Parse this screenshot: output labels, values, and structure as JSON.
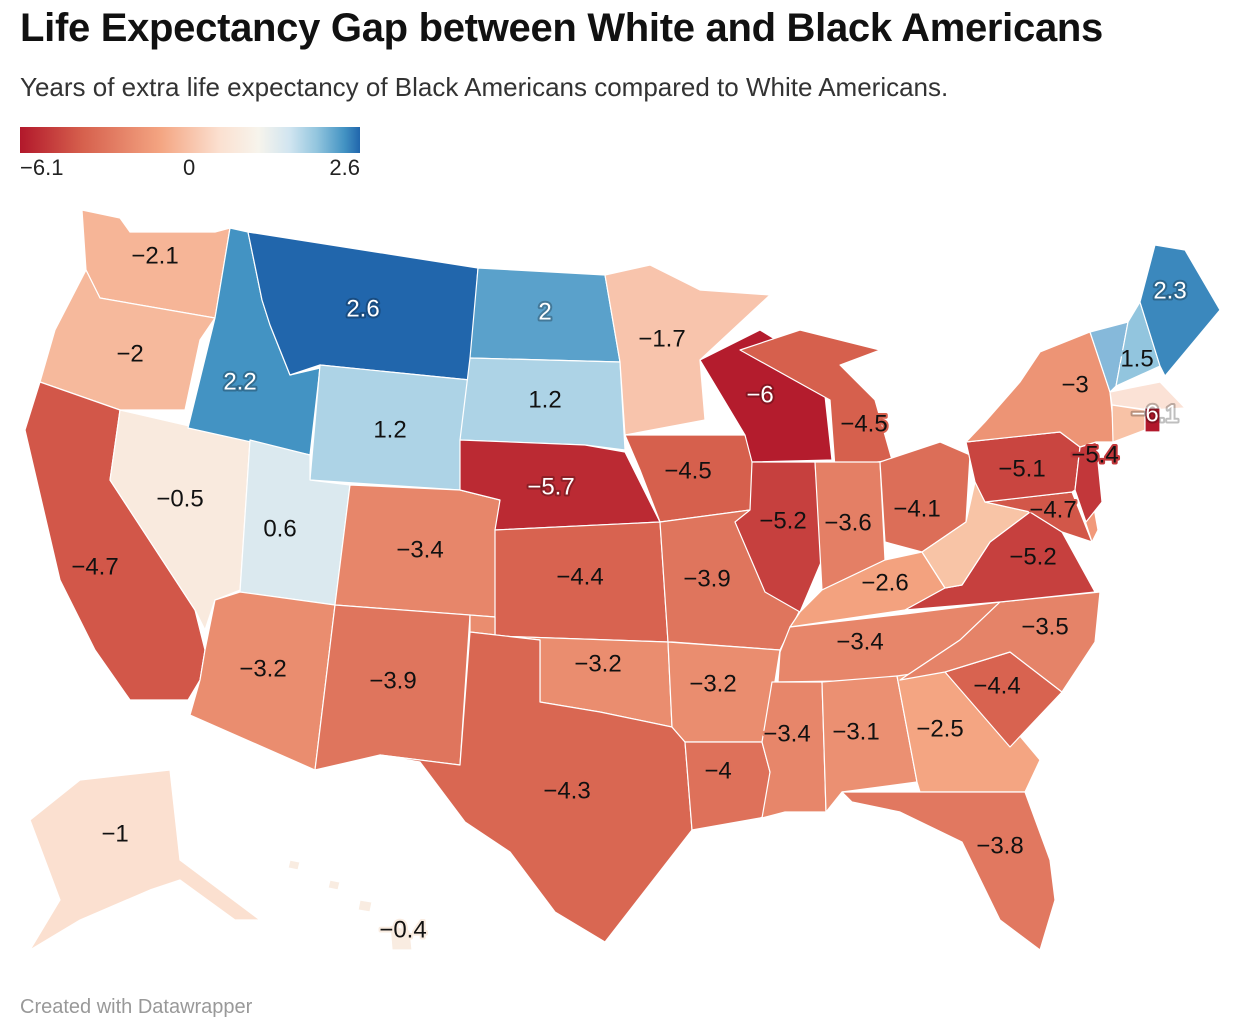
{
  "header": {
    "title": "Life Expectancy Gap between White and Black Americans",
    "subtitle": "Years of extra life expectancy of Black Americans compared to White Americans."
  },
  "legend": {
    "min_label": "−6.1",
    "mid_label": "0",
    "max_label": "2.6",
    "min": -6.1,
    "max": 2.6,
    "colors": {
      "min": "#b2182b",
      "mid": "#f7f4ec",
      "max": "#2166ac"
    }
  },
  "states": [
    {
      "id": "WA",
      "value": -2.1,
      "label": "−2.1"
    },
    {
      "id": "OR",
      "value": -2,
      "label": "−2"
    },
    {
      "id": "CA",
      "value": -4.7,
      "label": "−4.7"
    },
    {
      "id": "NV",
      "value": -0.5,
      "label": "−0.5"
    },
    {
      "id": "ID",
      "value": 2.2,
      "label": "2.2"
    },
    {
      "id": "MT",
      "value": 2.6,
      "label": "2.6"
    },
    {
      "id": "WY",
      "value": 1.2,
      "label": "1.2"
    },
    {
      "id": "UT",
      "value": 0.6,
      "label": "0.6"
    },
    {
      "id": "AZ",
      "value": -3.2,
      "label": "−3.2"
    },
    {
      "id": "CO",
      "value": -3.4,
      "label": "−3.4"
    },
    {
      "id": "NM",
      "value": -3.9,
      "label": "−3.9"
    },
    {
      "id": "ND",
      "value": 2,
      "label": "2"
    },
    {
      "id": "SD",
      "value": 1.2,
      "label": "1.2"
    },
    {
      "id": "NE",
      "value": -5.7,
      "label": "−5.7"
    },
    {
      "id": "KS",
      "value": -4.4,
      "label": "−4.4"
    },
    {
      "id": "OK",
      "value": -3.2,
      "label": "−3.2"
    },
    {
      "id": "TX",
      "value": -4.3,
      "label": "−4.3"
    },
    {
      "id": "MN",
      "value": -1.7,
      "label": "−1.7"
    },
    {
      "id": "IA",
      "value": -4.5,
      "label": "−4.5"
    },
    {
      "id": "MO",
      "value": -3.9,
      "label": "−3.9"
    },
    {
      "id": "AR",
      "value": -3.2,
      "label": "−3.2"
    },
    {
      "id": "LA",
      "value": -4,
      "label": "−4"
    },
    {
      "id": "WI",
      "value": -6,
      "label": "−6"
    },
    {
      "id": "IL",
      "value": -5.2,
      "label": "−5.2"
    },
    {
      "id": "MI",
      "value": -4.5,
      "label": "−4.5"
    },
    {
      "id": "IN",
      "value": -3.6,
      "label": "−3.6"
    },
    {
      "id": "OH",
      "value": -4.1,
      "label": "−4.1"
    },
    {
      "id": "KY",
      "value": -2.6,
      "label": "−2.6"
    },
    {
      "id": "TN",
      "value": -3.4,
      "label": "−3.4"
    },
    {
      "id": "MS",
      "value": -3.4,
      "label": "−3.4"
    },
    {
      "id": "AL",
      "value": -3.1,
      "label": "−3.1"
    },
    {
      "id": "GA",
      "value": -2.5,
      "label": "−2.5"
    },
    {
      "id": "FL",
      "value": -3.8,
      "label": "−3.8"
    },
    {
      "id": "SC",
      "value": -4.4,
      "label": "−4.4"
    },
    {
      "id": "NC",
      "value": -3.5,
      "label": "−3.5"
    },
    {
      "id": "VA",
      "value": -5.2,
      "label": "−5.2"
    },
    {
      "id": "WV",
      "fill": "#f8c4a6"
    },
    {
      "id": "MD",
      "value": -4.7,
      "label": "−4.7"
    },
    {
      "id": "DE",
      "fill": "#f1997a"
    },
    {
      "id": "PA",
      "value": -5.1,
      "label": "−5.1"
    },
    {
      "id": "NJ",
      "value": -5.4,
      "label": "−5.4"
    },
    {
      "id": "NY",
      "value": -3,
      "label": "−3"
    },
    {
      "id": "VT",
      "fill": "#86b9da"
    },
    {
      "id": "NH",
      "value": 1.5,
      "label": "1.5"
    },
    {
      "id": "ME",
      "value": 2.3,
      "label": "2.3"
    },
    {
      "id": "MA",
      "fill": "#fbe2d6"
    },
    {
      "id": "CT",
      "fill": "#f8c2a6"
    },
    {
      "id": "RI",
      "value": -6.1,
      "label": "−6.1"
    },
    {
      "id": "AK",
      "value": -1,
      "label": "−1"
    },
    {
      "id": "HI",
      "value": -0.4,
      "label": "−0.4"
    }
  ],
  "footer": {
    "credit": "Created with Datawrapper"
  }
}
